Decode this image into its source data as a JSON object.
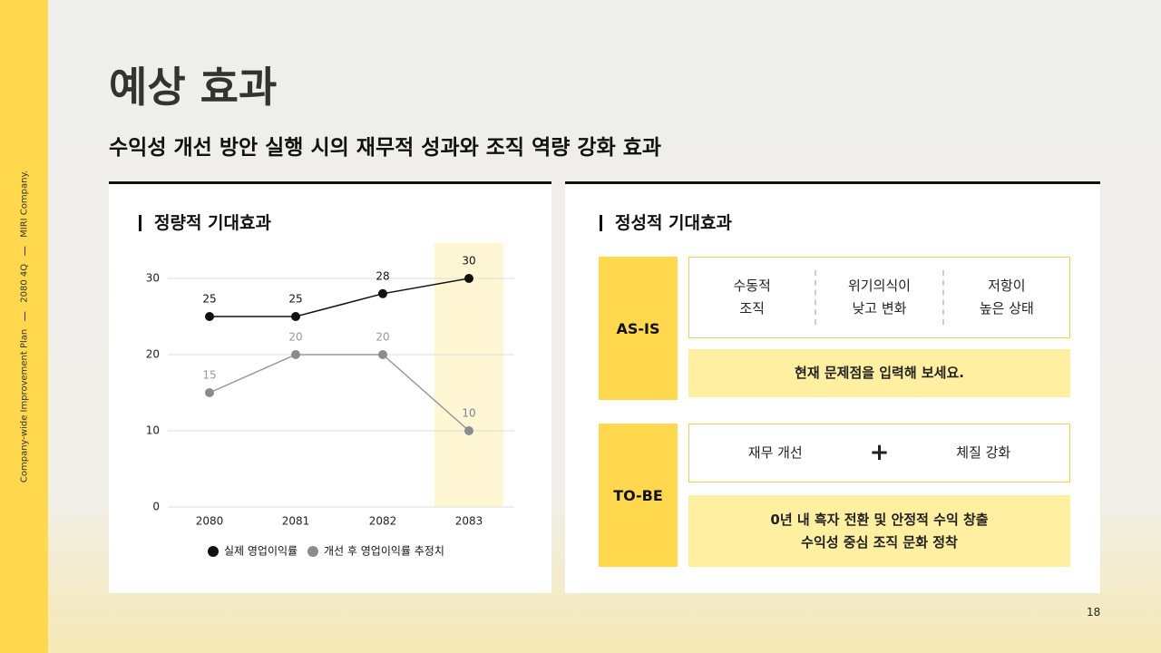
{
  "sidebar": {
    "plan": "Company-wide Improvement Plan",
    "period": "2080 4Q",
    "company": "MIRI Company."
  },
  "header": {
    "title": "예상 효과",
    "subtitle": "수익성 개선 방안 실행 시의 재무적 성과와 조직 역량 강화 효과"
  },
  "left_panel": {
    "heading": "정량적 기대효과"
  },
  "chart_data": {
    "type": "line",
    "categories": [
      "2080",
      "2081",
      "2082",
      "2083"
    ],
    "series": [
      {
        "name": "실제 영업이익률",
        "color": "#111111",
        "values": [
          25,
          25,
          28,
          30
        ]
      },
      {
        "name": "개선 후 영업이익률 추정치",
        "color": "#8c8c8c",
        "values": [
          15,
          20,
          20,
          10
        ]
      }
    ],
    "ylim": [
      0,
      30
    ],
    "yticks": [
      0,
      10,
      20,
      30
    ],
    "grid": true
  },
  "right_panel": {
    "heading": "정성적 기대효과",
    "as_is": {
      "label": "AS-IS",
      "items": [
        "수동적\n조직",
        "위기의식이\n낮고 변화",
        "저항이\n높은 상태"
      ],
      "note": "현재 문제점을 입력해 보세요."
    },
    "to_be": {
      "label": "TO-BE",
      "items": [
        "재무 개선",
        "체질 강화"
      ],
      "operator": "+",
      "note": "0년 내 흑자 전환 및 안정적 수익 창출\n수익성 중심 조직 문화 정착"
    }
  },
  "page_number": "18"
}
